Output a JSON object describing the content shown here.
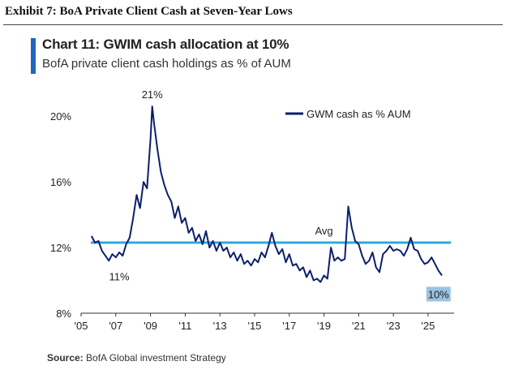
{
  "header": {
    "exhibit_title": "Exhibit 7: BoA Private Client Cash at Seven-Year Lows"
  },
  "chart_data": {
    "type": "line",
    "title": "Chart 11: GWIM cash allocation at 10%",
    "subtitle": "BofA private client cash holdings as % of AUM",
    "xlabel": "",
    "ylabel": "",
    "xlim": [
      2005.0,
      2026.5
    ],
    "ylim": [
      8,
      21
    ],
    "y_ticks": [
      8,
      12,
      16,
      20
    ],
    "y_tick_labels": [
      "8%",
      "12%",
      "16%",
      "20%"
    ],
    "x_ticks": [
      2005,
      2007,
      2009,
      2011,
      2013,
      2015,
      2017,
      2019,
      2021,
      2023,
      2025
    ],
    "x_tick_labels": [
      "'05",
      "'07",
      "'09",
      "'11",
      "'13",
      "'15",
      "'17",
      "'19",
      "'21",
      "'23",
      "'25"
    ],
    "grid": false,
    "legend_position": "top-right",
    "series": [
      {
        "name": "GWM cash as % AUM",
        "color": "#0b1e6e",
        "x": [
          2005.6,
          2005.8,
          2006.0,
          2006.2,
          2006.4,
          2006.6,
          2006.8,
          2007.0,
          2007.2,
          2007.4,
          2007.6,
          2007.8,
          2008.0,
          2008.2,
          2008.4,
          2008.6,
          2008.8,
          2009.0,
          2009.1,
          2009.2,
          2009.4,
          2009.6,
          2009.8,
          2010.0,
          2010.2,
          2010.4,
          2010.6,
          2010.8,
          2011.0,
          2011.2,
          2011.4,
          2011.6,
          2011.8,
          2012.0,
          2012.2,
          2012.4,
          2012.6,
          2012.8,
          2013.0,
          2013.2,
          2013.4,
          2013.6,
          2013.8,
          2014.0,
          2014.2,
          2014.4,
          2014.6,
          2014.8,
          2015.0,
          2015.2,
          2015.4,
          2015.6,
          2015.8,
          2016.0,
          2016.2,
          2016.4,
          2016.6,
          2016.8,
          2017.0,
          2017.2,
          2017.4,
          2017.6,
          2017.8,
          2018.0,
          2018.2,
          2018.4,
          2018.6,
          2018.8,
          2019.0,
          2019.2,
          2019.4,
          2019.6,
          2019.8,
          2020.0,
          2020.2,
          2020.4,
          2020.6,
          2020.8,
          2021.0,
          2021.2,
          2021.4,
          2021.6,
          2021.8,
          2022.0,
          2022.2,
          2022.4,
          2022.6,
          2022.8,
          2023.0,
          2023.2,
          2023.4,
          2023.6,
          2023.8,
          2024.0,
          2024.2,
          2024.4,
          2024.6,
          2024.8,
          2025.0,
          2025.2,
          2025.4,
          2025.6,
          2025.8
        ],
        "values": [
          12.7,
          12.3,
          12.4,
          11.8,
          11.5,
          11.2,
          11.6,
          11.4,
          11.7,
          11.5,
          12.2,
          12.6,
          13.8,
          15.2,
          14.4,
          16.0,
          15.6,
          18.6,
          20.6,
          19.6,
          18.0,
          16.6,
          15.8,
          15.2,
          14.8,
          13.8,
          14.5,
          13.5,
          13.8,
          12.9,
          13.2,
          12.4,
          12.8,
          12.2,
          13.0,
          12.0,
          12.4,
          11.8,
          12.3,
          11.8,
          12.0,
          11.4,
          11.7,
          11.2,
          11.6,
          11.0,
          11.2,
          10.9,
          11.3,
          11.1,
          11.7,
          11.4,
          12.1,
          12.9,
          12.1,
          11.6,
          11.9,
          11.1,
          11.6,
          10.9,
          11.0,
          10.6,
          10.8,
          10.2,
          10.6,
          10.0,
          10.1,
          9.9,
          10.3,
          10.1,
          12.0,
          11.2,
          11.4,
          11.2,
          11.3,
          14.5,
          13.2,
          12.4,
          12.2,
          11.5,
          11.0,
          11.2,
          11.7,
          10.8,
          10.5,
          11.6,
          11.8,
          12.1,
          11.8,
          11.9,
          11.8,
          11.5,
          11.9,
          12.6,
          11.9,
          11.8,
          11.3,
          11.0,
          11.1,
          11.4,
          11.0,
          10.6,
          10.3
        ]
      },
      {
        "name": "Avg",
        "type": "hline",
        "color": "#29abe2",
        "value": 12.3
      }
    ],
    "annotations": [
      {
        "text": "21%",
        "x": 2009.1,
        "y": 20.6,
        "placement": "above"
      },
      {
        "text": "11%",
        "x": 2007.2,
        "y": 11.2,
        "placement": "below"
      },
      {
        "text": "Avg",
        "x": 2019.0,
        "y": 12.3,
        "placement": "above"
      },
      {
        "text": "10%",
        "x": 2025.6,
        "y": 10.3,
        "placement": "below",
        "boxed": true
      }
    ]
  },
  "source": {
    "label": "Source:",
    "text": " BofA Global investment Strategy"
  },
  "colors": {
    "accent_bar": "#1f66c1",
    "line": "#0b1e6e",
    "avg_line": "#29abe2",
    "label_box": "#9cc3e0"
  }
}
